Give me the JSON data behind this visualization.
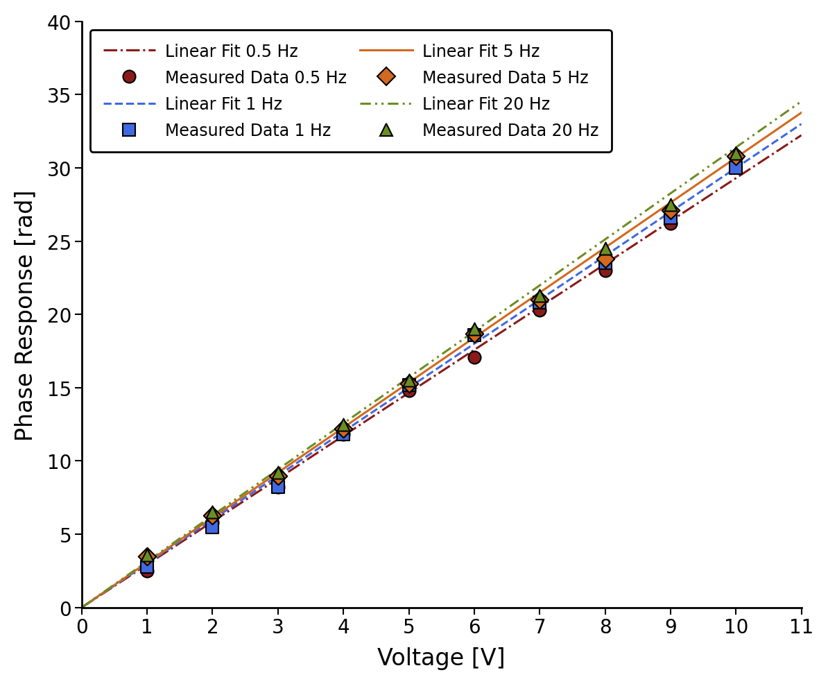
{
  "x_measured": [
    1,
    2,
    3,
    4,
    5,
    6,
    7,
    8,
    9,
    10
  ],
  "y_05hz": [
    2.5,
    5.8,
    8.2,
    11.8,
    14.8,
    17.1,
    20.3,
    23.0,
    26.2,
    30.8
  ],
  "y_1hz": [
    2.8,
    5.5,
    8.2,
    11.8,
    15.2,
    18.6,
    20.8,
    23.5,
    26.6,
    30.0
  ],
  "y_5hz": [
    3.5,
    6.3,
    9.0,
    12.2,
    15.3,
    18.7,
    21.0,
    23.8,
    27.1,
    30.8
  ],
  "y_20hz": [
    3.6,
    6.5,
    9.2,
    12.5,
    15.5,
    19.0,
    21.3,
    24.5,
    27.5,
    31.0
  ],
  "fit_slope_05hz": 2.93,
  "fit_intercept_05hz": 0.0,
  "fit_slope_1hz": 3.0,
  "fit_intercept_1hz": 0.0,
  "fit_slope_5hz": 3.07,
  "fit_intercept_5hz": 0.0,
  "fit_slope_20hz": 3.14,
  "fit_intercept_20hz": 0.0,
  "color_05hz": "#8B1A1A",
  "color_1hz": "#4169E1",
  "color_5hz": "#D2691E",
  "color_20hz": "#6B8E23",
  "xlim": [
    0,
    11
  ],
  "ylim": [
    0,
    40
  ],
  "xticks": [
    0,
    1,
    2,
    3,
    4,
    5,
    6,
    7,
    8,
    9,
    10,
    11
  ],
  "yticks": [
    0,
    5,
    10,
    15,
    20,
    25,
    30,
    35,
    40
  ],
  "xlabel": "Voltage [V]",
  "ylabel": "Phase Response [rad]",
  "legend_line_labels": [
    "Linear Fit 0.5 Hz",
    "Linear Fit 1 Hz",
    "Linear Fit 5 Hz",
    "Linear Fit 20 Hz"
  ],
  "legend_scat_labels": [
    "Measured Data 0.5 Hz",
    "Measured Data 1 Hz",
    "Measured Data 5 Hz",
    "Measured Data 20 Hz"
  ],
  "marker_size": 13,
  "line_width": 2.2,
  "edge_width": 1.5,
  "tick_labelsize": 20,
  "axis_labelsize": 24,
  "legend_fontsize": 17
}
